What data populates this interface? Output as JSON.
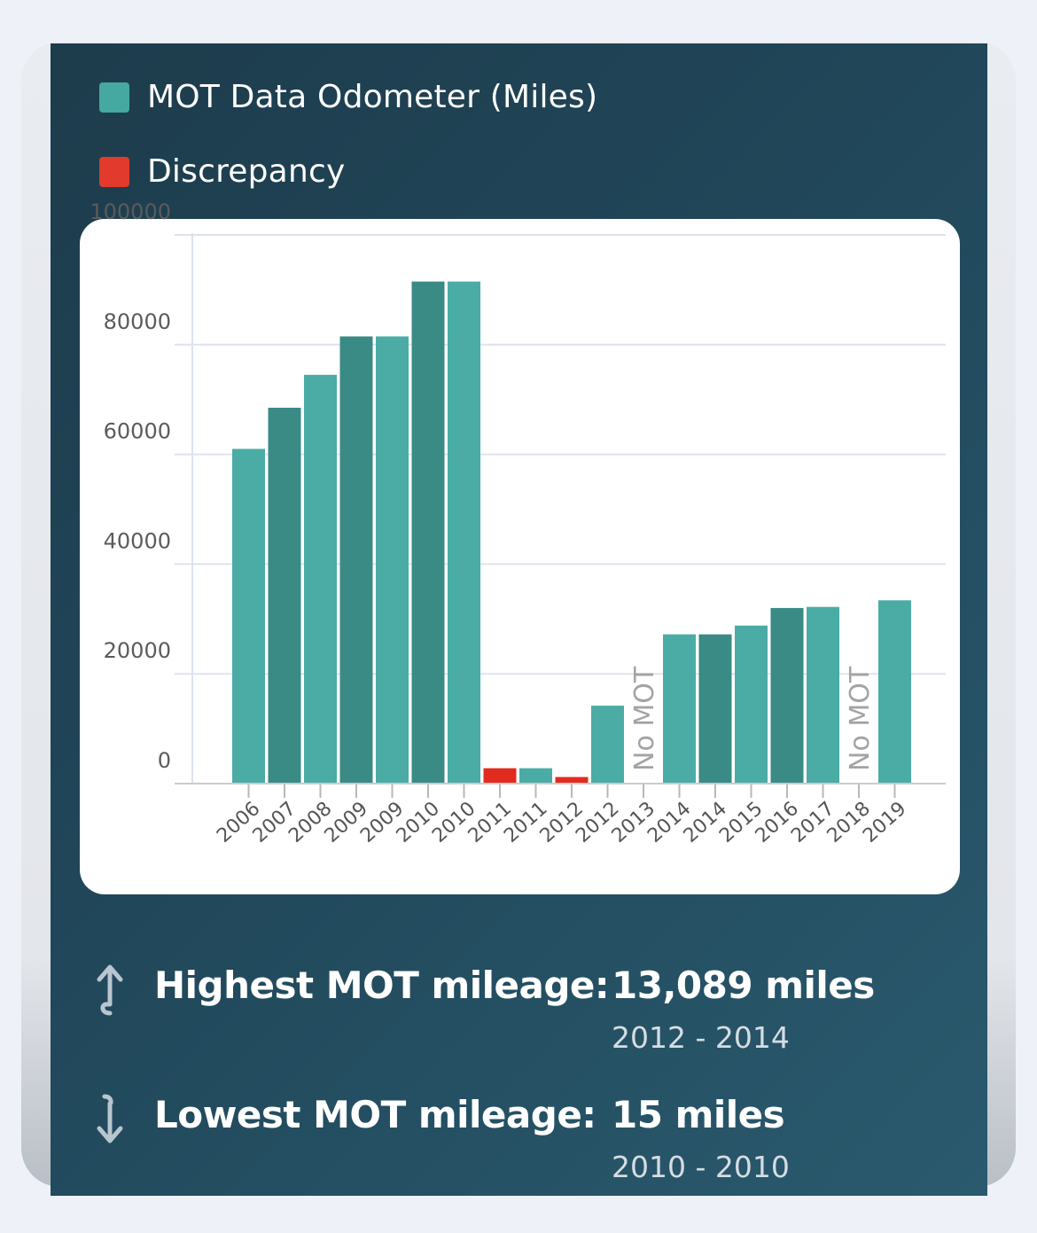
{
  "legend": [
    {
      "label": "MOT Data Odometer (Miles)",
      "color": "#45a8a1"
    },
    {
      "label": "Discrepancy",
      "color": "#e23a2c"
    }
  ],
  "chart_data": {
    "type": "bar",
    "title": "",
    "xlabel": "",
    "ylabel": "",
    "ylim": [
      0,
      100000
    ],
    "y_ticks": [
      "0",
      "20000",
      "40000",
      "60000",
      "80000",
      "100000"
    ],
    "categories": [
      "2006",
      "2007",
      "2008",
      "2009",
      "2009",
      "2010",
      "2010",
      "2011",
      "2011",
      "2012",
      "2012",
      "2013",
      "2014",
      "2014",
      "2015",
      "2016",
      "2017",
      "2018",
      "2019"
    ],
    "values": [
      61000,
      68500,
      74500,
      81500,
      81500,
      91500,
      91500,
      2800,
      2800,
      1200,
      14200,
      null,
      27200,
      27200,
      28800,
      32000,
      32200,
      null,
      33400
    ],
    "bar_kind": [
      "normal",
      "normal",
      "normal",
      "normal",
      "normal",
      "normal",
      "normal",
      "discrepancy",
      "normal",
      "discrepancy",
      "normal",
      "nomot",
      "normal",
      "normal",
      "normal",
      "normal",
      "normal",
      "nomot",
      "normal"
    ],
    "no_mot_label": "No MOT",
    "series_colors": {
      "light": "#4aaca5",
      "dark": "#3a8a86",
      "discrepancy": "#e22b1f",
      "no_mot_text": "#a3a3a3"
    }
  },
  "stats": {
    "highest": {
      "label": "Highest MOT mileage:",
      "value": "13,089 miles",
      "range": "2012 - 2014",
      "icon": "arrow-up-icon"
    },
    "lowest": {
      "label": "Lowest MOT mileage:",
      "value": "15 miles",
      "range": "2010 - 2010",
      "icon": "arrow-down-icon"
    }
  }
}
